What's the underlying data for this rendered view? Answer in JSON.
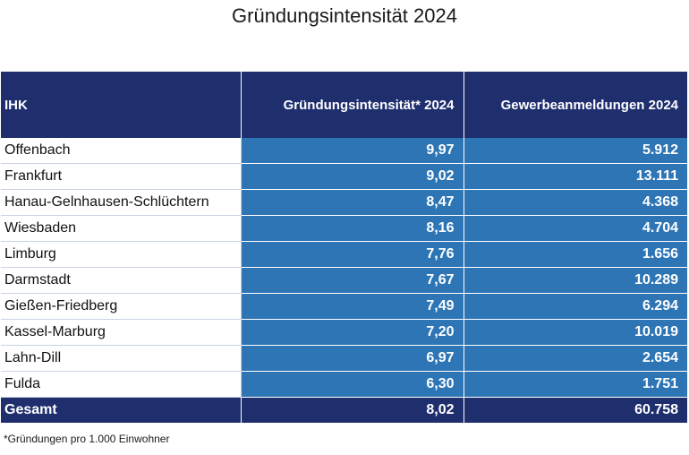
{
  "title": "Gründungsintensität 2024",
  "table": {
    "headers": [
      "IHK",
      "Gründungsintensität* 2024",
      "Gewerbeanmeldungen 2024"
    ],
    "rows": [
      {
        "ihk": "Offenbach",
        "intensitaet": "9,97",
        "anmeldungen": "5.912"
      },
      {
        "ihk": "Frankfurt",
        "intensitaet": "9,02",
        "anmeldungen": "13.111"
      },
      {
        "ihk": "Hanau-Gelnhausen-Schlüchtern",
        "intensitaet": "8,47",
        "anmeldungen": "4.368"
      },
      {
        "ihk": "Wiesbaden",
        "intensitaet": "8,16",
        "anmeldungen": "4.704"
      },
      {
        "ihk": "Limburg",
        "intensitaet": "7,76",
        "anmeldungen": "1.656"
      },
      {
        "ihk": "Darmstadt",
        "intensitaet": "7,67",
        "anmeldungen": "10.289"
      },
      {
        "ihk": "Gießen-Friedberg",
        "intensitaet": "7,49",
        "anmeldungen": "6.294"
      },
      {
        "ihk": "Kassel-Marburg",
        "intensitaet": "7,20",
        "anmeldungen": "10.019"
      },
      {
        "ihk": "Lahn-Dill",
        "intensitaet": "6,97",
        "anmeldungen": "2.654"
      },
      {
        "ihk": "Fulda",
        "intensitaet": "6,30",
        "anmeldungen": "1.751"
      }
    ],
    "total": {
      "ihk": "Gesamt",
      "intensitaet": "8,02",
      "anmeldungen": "60.758"
    }
  },
  "footnote": "*Gründungen pro 1.000 Einwohner",
  "colors": {
    "header": "#1f2f6e",
    "value_cells": "#2e75b6",
    "total_row": "#1f2f6e"
  }
}
